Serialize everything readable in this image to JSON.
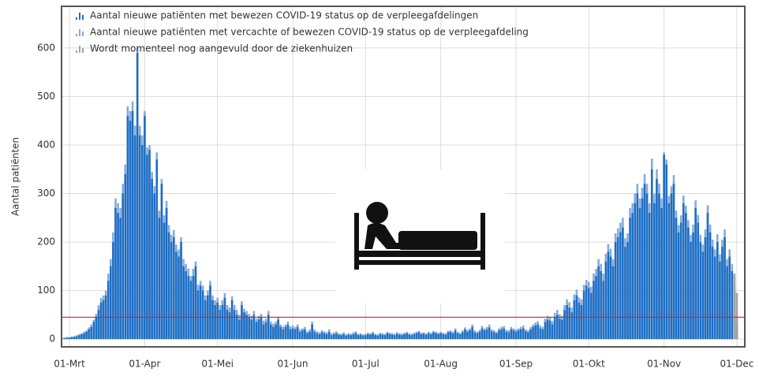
{
  "chart_data": {
    "type": "bar",
    "y_label": "Aantal patiënten",
    "categories": [
      null,
      null,
      null,
      "01-Mrt",
      null,
      null,
      null,
      null,
      null,
      null,
      null,
      null,
      null,
      null,
      null,
      null,
      null,
      null,
      null,
      null,
      null,
      null,
      null,
      null,
      null,
      null,
      null,
      null,
      null,
      null,
      null,
      null,
      null,
      null,
      "01-Apr",
      null,
      null,
      null,
      null,
      null,
      null,
      null,
      null,
      null,
      null,
      null,
      null,
      null,
      null,
      null,
      null,
      null,
      null,
      null,
      null,
      null,
      null,
      null,
      null,
      null,
      null,
      null,
      null,
      null,
      "01-Mei",
      null,
      null,
      null,
      null,
      null,
      null,
      null,
      null,
      null,
      null,
      null,
      null,
      null,
      null,
      null,
      null,
      null,
      null,
      null,
      null,
      null,
      null,
      null,
      null,
      null,
      null,
      null,
      null,
      null,
      null,
      "01-Jun",
      null,
      null,
      null,
      null,
      null,
      null,
      null,
      null,
      null,
      null,
      null,
      null,
      null,
      null,
      null,
      null,
      null,
      null,
      null,
      null,
      null,
      null,
      null,
      null,
      null,
      null,
      null,
      null,
      null,
      "01-Jul",
      null,
      null,
      null,
      null,
      null,
      null,
      null,
      null,
      null,
      null,
      null,
      null,
      null,
      null,
      null,
      null,
      null,
      null,
      null,
      null,
      null,
      null,
      null,
      null,
      null,
      null,
      null,
      null,
      null,
      null,
      "01-Aug",
      null,
      null,
      null,
      null,
      null,
      null,
      null,
      null,
      null,
      null,
      null,
      null,
      null,
      null,
      null,
      null,
      null,
      null,
      null,
      null,
      null,
      null,
      null,
      null,
      null,
      null,
      null,
      null,
      null,
      null,
      "01-Sep",
      null,
      null,
      null,
      null,
      null,
      null,
      null,
      null,
      null,
      null,
      null,
      null,
      null,
      null,
      null,
      null,
      null,
      null,
      null,
      null,
      null,
      null,
      null,
      null,
      null,
      null,
      null,
      null,
      null,
      "01-Okt",
      null,
      null,
      null,
      null,
      null,
      null,
      null,
      null,
      null,
      null,
      null,
      null,
      null,
      null,
      null,
      null,
      null,
      null,
      null,
      null,
      null,
      null,
      null,
      null,
      null,
      null,
      null,
      null,
      null,
      null,
      "01-Nov",
      null,
      null,
      null,
      null,
      null,
      null,
      null,
      null,
      null,
      null,
      null,
      null,
      null,
      null,
      null,
      null,
      null,
      null,
      null,
      null,
      null,
      null,
      null,
      null,
      null,
      null,
      null,
      null,
      null,
      "01-Dec"
    ],
    "series": [
      {
        "name": "Aantal nieuwe patiënten met vercachte of bewezen COVID-19 status op de verpleegafdeling",
        "color": "#86acd9",
        "values": [
          2,
          3,
          4,
          4,
          5,
          6,
          8,
          10,
          12,
          15,
          18,
          24,
          30,
          40,
          52,
          70,
          85,
          90,
          100,
          135,
          165,
          220,
          290,
          280,
          270,
          320,
          360,
          480,
          470,
          490,
          440,
          600,
          440,
          420,
          470,
          395,
          400,
          345,
          315,
          385,
          265,
          330,
          255,
          285,
          235,
          215,
          225,
          195,
          185,
          210,
          165,
          155,
          145,
          130,
          145,
          160,
          112,
          120,
          110,
          90,
          100,
          120,
          90,
          80,
          85,
          70,
          80,
          95,
          70,
          65,
          88,
          70,
          60,
          50,
          78,
          62,
          58,
          52,
          48,
          58,
          42,
          48,
          52,
          38,
          42,
          58,
          36,
          32,
          36,
          46,
          30,
          26,
          30,
          36,
          26,
          28,
          25,
          30,
          20,
          22,
          25,
          16,
          20,
          36,
          20,
          16,
          14,
          18,
          16,
          14,
          20,
          12,
          14,
          16,
          12,
          11,
          14,
          10,
          12,
          11,
          14,
          16,
          11,
          12,
          10,
          11,
          13,
          12,
          15,
          11,
          10,
          13,
          12,
          11,
          15,
          13,
          12,
          11,
          14,
          12,
          11,
          13,
          15,
          12,
          11,
          13,
          15,
          17,
          13,
          14,
          12,
          15,
          13,
          17,
          15,
          13,
          15,
          13,
          12,
          17,
          18,
          15,
          22,
          15,
          13,
          18,
          24,
          19,
          22,
          30,
          18,
          15,
          19,
          27,
          22,
          25,
          30,
          20,
          18,
          15,
          22,
          25,
          27,
          19,
          18,
          25,
          22,
          20,
          22,
          25,
          28,
          20,
          18,
          25,
          30,
          34,
          37,
          28,
          25,
          42,
          48,
          46,
          37,
          54,
          60,
          51,
          48,
          70,
          82,
          76,
          65,
          92,
          102,
          86,
          82,
          112,
          122,
          118,
          108,
          135,
          145,
          165,
          155,
          135,
          176,
          196,
          186,
          165,
          218,
          228,
          240,
          250,
          208,
          218,
          270,
          280,
          300,
          320,
          290,
          312,
          340,
          320,
          280,
          372,
          300,
          350,
          320,
          290,
          385,
          370,
          295,
          315,
          338,
          265,
          235,
          255,
          296,
          275,
          245,
          215,
          236,
          286,
          256,
          215,
          195,
          226,
          276,
          236,
          205,
          185,
          216,
          175,
          205,
          226,
          165,
          185,
          155,
          130,
          45
        ]
      },
      {
        "name": "Aantal nieuwe patiënten met bewezen COVID-19 status op de verpleegafdelingen",
        "color": "#1e6ec4",
        "values": [
          1,
          2,
          3,
          3,
          4,
          5,
          6,
          8,
          10,
          12,
          15,
          20,
          25,
          35,
          45,
          60,
          75,
          80,
          90,
          120,
          150,
          200,
          270,
          260,
          250,
          300,
          340,
          460,
          450,
          470,
          420,
          590,
          420,
          400,
          460,
          380,
          390,
          330,
          300,
          370,
          250,
          320,
          240,
          270,
          220,
          200,
          210,
          180,
          170,
          200,
          150,
          140,
          130,
          120,
          130,
          150,
          100,
          110,
          100,
          80,
          90,
          110,
          80,
          70,
          75,
          60,
          70,
          85,
          60,
          55,
          80,
          60,
          50,
          40,
          70,
          55,
          50,
          45,
          40,
          50,
          35,
          40,
          45,
          30,
          35,
          50,
          30,
          25,
          30,
          40,
          25,
          20,
          25,
          30,
          20,
          22,
          20,
          25,
          15,
          18,
          20,
          12,
          15,
          30,
          15,
          12,
          10,
          14,
          12,
          10,
          15,
          8,
          10,
          12,
          9,
          8,
          10,
          7,
          9,
          8,
          10,
          12,
          8,
          9,
          7,
          8,
          10,
          9,
          12,
          8,
          7,
          10,
          9,
          8,
          12,
          10,
          9,
          8,
          11,
          9,
          8,
          10,
          12,
          9,
          8,
          10,
          12,
          14,
          10,
          11,
          9,
          12,
          10,
          14,
          12,
          10,
          12,
          10,
          9,
          14,
          15,
          12,
          18,
          12,
          10,
          14,
          20,
          15,
          18,
          25,
          14,
          12,
          15,
          22,
          18,
          20,
          24,
          16,
          14,
          12,
          18,
          20,
          22,
          15,
          14,
          20,
          18,
          15,
          18,
          20,
          22,
          16,
          14,
          20,
          25,
          28,
          30,
          22,
          20,
          35,
          40,
          38,
          30,
          45,
          50,
          42,
          40,
          60,
          70,
          65,
          55,
          80,
          90,
          75,
          70,
          100,
          110,
          105,
          95,
          120,
          130,
          150,
          140,
          120,
          160,
          180,
          170,
          150,
          200,
          210,
          220,
          230,
          190,
          200,
          250,
          260,
          280,
          300,
          270,
          290,
          320,
          300,
          260,
          350,
          280,
          330,
          300,
          270,
          380,
          360,
          280,
          300,
          320,
          250,
          220,
          240,
          280,
          260,
          230,
          200,
          220,
          270,
          240,
          200,
          180,
          210,
          260,
          220,
          190,
          170,
          200,
          160,
          190,
          210,
          150,
          170,
          140,
          110,
          30
        ]
      },
      {
        "name": "Wordt momenteel nog aangevuld door de ziekenhuizen",
        "color": "#a3a3a3",
        "values": [
          null,
          null,
          null,
          null,
          null,
          null,
          null,
          null,
          null,
          null,
          null,
          null,
          null,
          null,
          null,
          null,
          null,
          null,
          null,
          null,
          null,
          null,
          null,
          null,
          null,
          null,
          null,
          null,
          null,
          null,
          null,
          null,
          null,
          null,
          null,
          null,
          null,
          null,
          null,
          null,
          null,
          null,
          null,
          null,
          null,
          null,
          null,
          null,
          null,
          null,
          null,
          null,
          null,
          null,
          null,
          null,
          null,
          null,
          null,
          null,
          null,
          null,
          null,
          null,
          null,
          null,
          null,
          null,
          null,
          null,
          null,
          null,
          null,
          null,
          null,
          null,
          null,
          null,
          null,
          null,
          null,
          null,
          null,
          null,
          null,
          null,
          null,
          null,
          null,
          null,
          null,
          null,
          null,
          null,
          null,
          null,
          null,
          null,
          null,
          null,
          null,
          null,
          null,
          null,
          null,
          null,
          null,
          null,
          null,
          null,
          null,
          null,
          null,
          null,
          null,
          null,
          null,
          null,
          null,
          null,
          null,
          null,
          null,
          null,
          null,
          null,
          null,
          null,
          null,
          null,
          null,
          null,
          null,
          null,
          null,
          null,
          null,
          null,
          null,
          null,
          null,
          null,
          null,
          null,
          null,
          null,
          null,
          null,
          null,
          null,
          null,
          null,
          null,
          null,
          null,
          null,
          null,
          null,
          null,
          null,
          null,
          null,
          null,
          null,
          null,
          null,
          null,
          null,
          null,
          null,
          null,
          null,
          null,
          null,
          null,
          null,
          null,
          null,
          null,
          null,
          null,
          null,
          null,
          null,
          null,
          null,
          null,
          null,
          null,
          null,
          null,
          null,
          null,
          null,
          null,
          null,
          null,
          null,
          null,
          null,
          null,
          null,
          null,
          null,
          null,
          null,
          null,
          null,
          null,
          null,
          null,
          null,
          null,
          null,
          null,
          null,
          null,
          null,
          null,
          null,
          null,
          null,
          null,
          null,
          null,
          null,
          null,
          null,
          null,
          null,
          null,
          null,
          null,
          null,
          null,
          null,
          null,
          null,
          null,
          null,
          null,
          null,
          null,
          null,
          null,
          null,
          null,
          null,
          null,
          null,
          null,
          null,
          null,
          null,
          null,
          null,
          null,
          null,
          null,
          null,
          null,
          null,
          null,
          null,
          null,
          null,
          null,
          null,
          null,
          null,
          null,
          null,
          null,
          null,
          null,
          null,
          null,
          135,
          95
        ]
      }
    ],
    "ylim": [
      -16,
      686
    ],
    "yticks": [
      0,
      100,
      200,
      300,
      400,
      500,
      600
    ],
    "grid": true,
    "reference_line": 45,
    "reference_color": "#e02020",
    "legend": "upper left"
  }
}
